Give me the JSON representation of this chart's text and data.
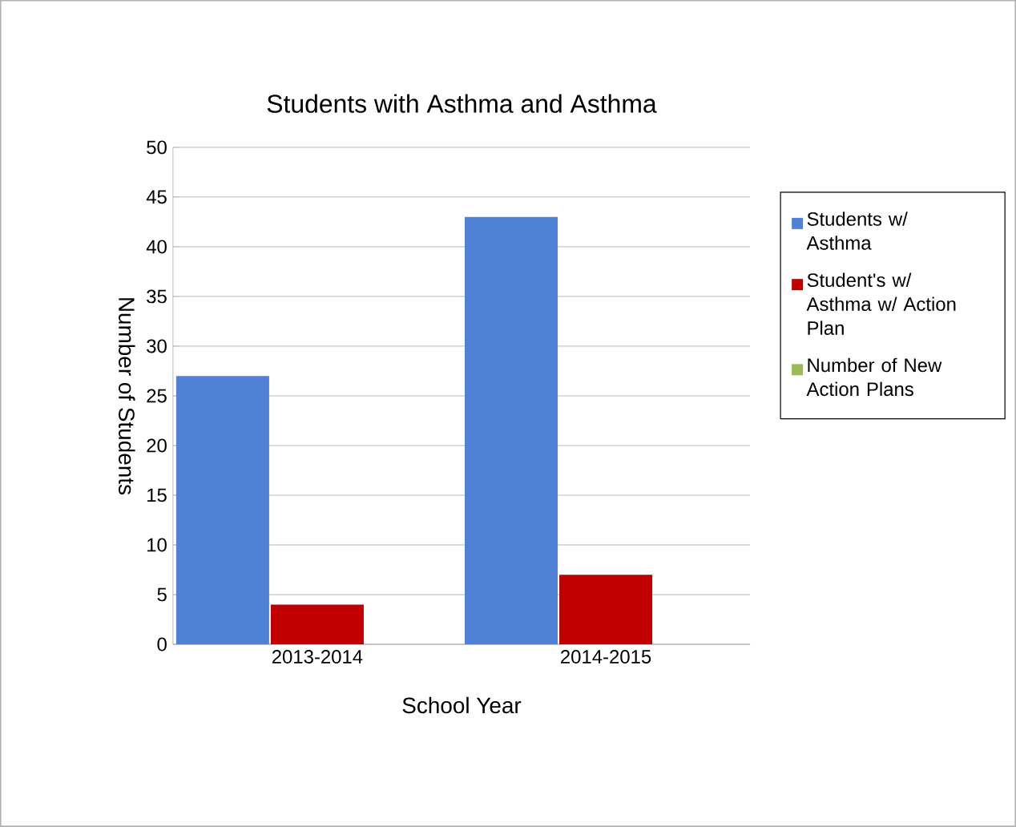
{
  "chart_data": {
    "type": "bar",
    "title": "Students with Asthma and Asthma",
    "xlabel": "School Year",
    "ylabel": "Number of Students",
    "categories": [
      "2013-2014",
      "2014-2015"
    ],
    "series": [
      {
        "name": "Students w/ Asthma",
        "color": "#4f81d6",
        "values": [
          27,
          43
        ]
      },
      {
        "name": "Student's w/ Asthma w/ Action Plan",
        "color": "#c00000",
        "values": [
          4,
          7
        ]
      },
      {
        "name": "Number of New Action Plans",
        "color": "#9bbb59",
        "values": [
          0,
          0
        ]
      }
    ],
    "ylim": [
      0,
      50
    ],
    "yticks": [
      0,
      5,
      10,
      15,
      20,
      25,
      30,
      35,
      40,
      45,
      50
    ],
    "grid": "y",
    "legend": "right"
  }
}
